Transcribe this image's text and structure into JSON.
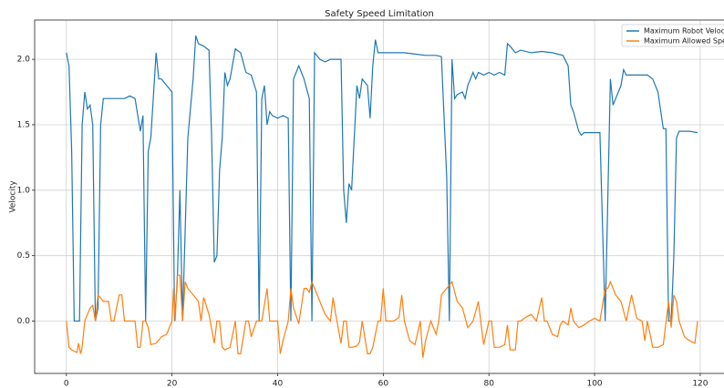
{
  "chart_data": {
    "type": "line",
    "title": "Safety Speed Limitation",
    "ylabel": "Velocity",
    "xlim": [
      -6,
      124.5
    ],
    "ylim": [
      -0.4,
      2.3
    ],
    "xticks": [
      0,
      20,
      40,
      60,
      80,
      100,
      120
    ],
    "yticks": [
      {
        "value": 0,
        "label": "0.0"
      },
      0.5,
      {
        "value": 1,
        "label": "1.0"
      },
      1.5,
      {
        "value": 2,
        "label": "2.0"
      }
    ],
    "grid": true,
    "legend": "upper right",
    "series": [
      {
        "name": "Maximum Robot Velocity",
        "color": "#1f77b4",
        "x": [
          0,
          0.5,
          1,
          1.5,
          2,
          2.5,
          3,
          3.5,
          4,
          4.5,
          5,
          5.5,
          6,
          6.5,
          7,
          8,
          9,
          10,
          11,
          12,
          13,
          14,
          14.5,
          15,
          15.5,
          16,
          17,
          17.5,
          18,
          19,
          20,
          20.5,
          21,
          21.5,
          22,
          23,
          24,
          24.5,
          25,
          26,
          27,
          27.5,
          28,
          28.5,
          29,
          29.5,
          30,
          30.5,
          31,
          32,
          33,
          34,
          35,
          36,
          36.5,
          37,
          37.5,
          38,
          38.5,
          39,
          40,
          41,
          42,
          42.5,
          43,
          44,
          45,
          46,
          46.5,
          47,
          48,
          49,
          50,
          51,
          52,
          52.5,
          53,
          53.5,
          54,
          55,
          55.5,
          56,
          57,
          57.5,
          58,
          58.5,
          59,
          60,
          62,
          64,
          66,
          68,
          70,
          71,
          72,
          72.5,
          73,
          73.5,
          74,
          75,
          75.5,
          76,
          77,
          77.5,
          78,
          79,
          80,
          81,
          82,
          83,
          83.5,
          84,
          85,
          86,
          88,
          90,
          92,
          94,
          95,
          95.5,
          96,
          97,
          97.5,
          98,
          100,
          101,
          102,
          103,
          103.5,
          104,
          105,
          105.5,
          106,
          108,
          110,
          111,
          112,
          113,
          113.5,
          114,
          114.5,
          115,
          115.5,
          116,
          118,
          119.5
        ],
        "values": [
          2.05,
          1.95,
          1.3,
          0,
          0,
          0,
          1.5,
          1.75,
          1.62,
          1.65,
          1.5,
          0,
          0.1,
          1.5,
          1.7,
          1.7,
          1.7,
          1.7,
          1.7,
          1.72,
          1.7,
          1.45,
          1.57,
          0,
          1.3,
          1.4,
          2.05,
          1.85,
          1.85,
          1.8,
          1.75,
          0,
          0.3,
          1.0,
          0,
          1.4,
          1.85,
          2.18,
          2.12,
          2.1,
          2.07,
          1.4,
          0.45,
          0.5,
          1.15,
          1.4,
          1.9,
          1.8,
          1.85,
          2.08,
          2.05,
          1.9,
          1.88,
          1.75,
          0,
          1.7,
          1.8,
          1.5,
          1.6,
          1.57,
          1.55,
          1.57,
          1.55,
          0,
          1.85,
          1.95,
          1.85,
          1.7,
          0,
          2.05,
          2.0,
          1.98,
          2.0,
          2.0,
          2.0,
          1.0,
          0.75,
          1.05,
          1.0,
          1.8,
          1.7,
          1.85,
          1.8,
          1.55,
          1.95,
          2.15,
          2.05,
          2.05,
          2.05,
          2.05,
          2.04,
          2.03,
          2.03,
          2.02,
          1.1,
          0,
          2.0,
          1.7,
          1.73,
          1.75,
          1.7,
          1.8,
          1.9,
          1.85,
          1.9,
          1.88,
          1.9,
          1.88,
          1.9,
          1.88,
          2.12,
          2.1,
          2.05,
          2.07,
          2.05,
          2.06,
          2.05,
          2.03,
          1.95,
          1.65,
          1.6,
          1.45,
          1.42,
          1.44,
          1.44,
          1.44,
          0,
          1.85,
          1.65,
          1.7,
          1.8,
          1.92,
          1.88,
          1.88,
          1.88,
          1.85,
          1.75,
          1.47,
          1.47,
          0,
          0,
          0.5,
          1.4,
          1.45,
          1.45,
          1.44
        ]
      },
      {
        "name": "Maximum Allowed Speed",
        "color": "#ff7f0e",
        "x": [
          0,
          0.5,
          1,
          2,
          2.3,
          2.7,
          3,
          3.5,
          4,
          4.5,
          5,
          5.5,
          6,
          7,
          8,
          8.5,
          9,
          10,
          10.5,
          11,
          12,
          13,
          13.5,
          14,
          14.5,
          15,
          15.5,
          16,
          17,
          18,
          19,
          20,
          20.3,
          20.6,
          21,
          21.5,
          22,
          22.5,
          23,
          24,
          25,
          25.5,
          26,
          27,
          28,
          28.5,
          29,
          29.5,
          30,
          31,
          32,
          32.5,
          33,
          34,
          34.5,
          35,
          36,
          37,
          38,
          38.5,
          39,
          40,
          40.5,
          41,
          42,
          42.5,
          43,
          44,
          45,
          45.5,
          46,
          46.5,
          47,
          48,
          49,
          50,
          50.5,
          51,
          52,
          52.5,
          53,
          53.5,
          54,
          55,
          55.5,
          56,
          57,
          57.5,
          58,
          59,
          59.5,
          60,
          60.5,
          62,
          63,
          63.5,
          64,
          65,
          66,
          67,
          67.5,
          68,
          69,
          70,
          70.5,
          71,
          72,
          73,
          74,
          75,
          76,
          77,
          78,
          79,
          80,
          80.5,
          81,
          82,
          83,
          83.5,
          84,
          85,
          85.5,
          86,
          87,
          88,
          89,
          90,
          90.5,
          91,
          92,
          93,
          93.5,
          94,
          95,
          95.5,
          96,
          97,
          98,
          99,
          100,
          101,
          102,
          102.5,
          103,
          104,
          105,
          106,
          107,
          108,
          109,
          109.5,
          110,
          111,
          112,
          113,
          114,
          114.5,
          115,
          115.5,
          116,
          117,
          118,
          119,
          119.5
        ],
        "values": [
          0,
          -0.2,
          -0.22,
          -0.24,
          -0.17,
          -0.25,
          -0.2,
          0,
          0.05,
          0.1,
          0.12,
          0,
          0.2,
          0.15,
          0.15,
          0,
          0,
          0.2,
          0.2,
          0,
          0,
          0,
          -0.2,
          -0.2,
          0,
          0,
          -0.05,
          -0.18,
          -0.17,
          -0.12,
          -0.1,
          0,
          0.25,
          0,
          0.35,
          0.35,
          0,
          0.3,
          0.25,
          0.2,
          0.15,
          0,
          0.18,
          0.05,
          -0.17,
          0,
          0,
          -0.2,
          -0.22,
          -0.2,
          0,
          -0.25,
          -0.25,
          0,
          0,
          -0.12,
          0,
          0,
          0.25,
          0,
          0,
          0,
          -0.25,
          -0.15,
          0,
          0.25,
          0.1,
          -0.02,
          0.25,
          0.25,
          0.22,
          0.3,
          0.25,
          0.15,
          0.05,
          0,
          0.18,
          0.05,
          -0.17,
          0,
          0,
          -0.2,
          -0.2,
          -0.19,
          -0.16,
          0,
          -0.25,
          -0.25,
          -0.2,
          0,
          0,
          0.25,
          0,
          0,
          0.03,
          0.2,
          0,
          -0.15,
          -0.18,
          0,
          -0.28,
          -0.15,
          0,
          -0.1,
          0,
          0.2,
          0.25,
          0.3,
          0.15,
          0.1,
          -0.05,
          0,
          0.15,
          -0.18,
          0,
          0,
          -0.2,
          -0.2,
          -0.18,
          -0.03,
          -0.22,
          -0.22,
          0,
          0,
          0.03,
          0.05,
          0,
          0.18,
          0,
          0,
          -0.1,
          -0.12,
          -0.03,
          0,
          -0.03,
          0.1,
          0,
          -0.05,
          -0.03,
          0,
          0.02,
          0,
          0.25,
          0.25,
          0.3,
          0.2,
          0.15,
          0,
          0.2,
          0.02,
          0,
          -0.15,
          0,
          -0.2,
          -0.2,
          -0.18,
          0.15,
          -0.05,
          0.2,
          0.15,
          0,
          -0.12,
          -0.15,
          -0.17,
          0
        ]
      }
    ]
  }
}
